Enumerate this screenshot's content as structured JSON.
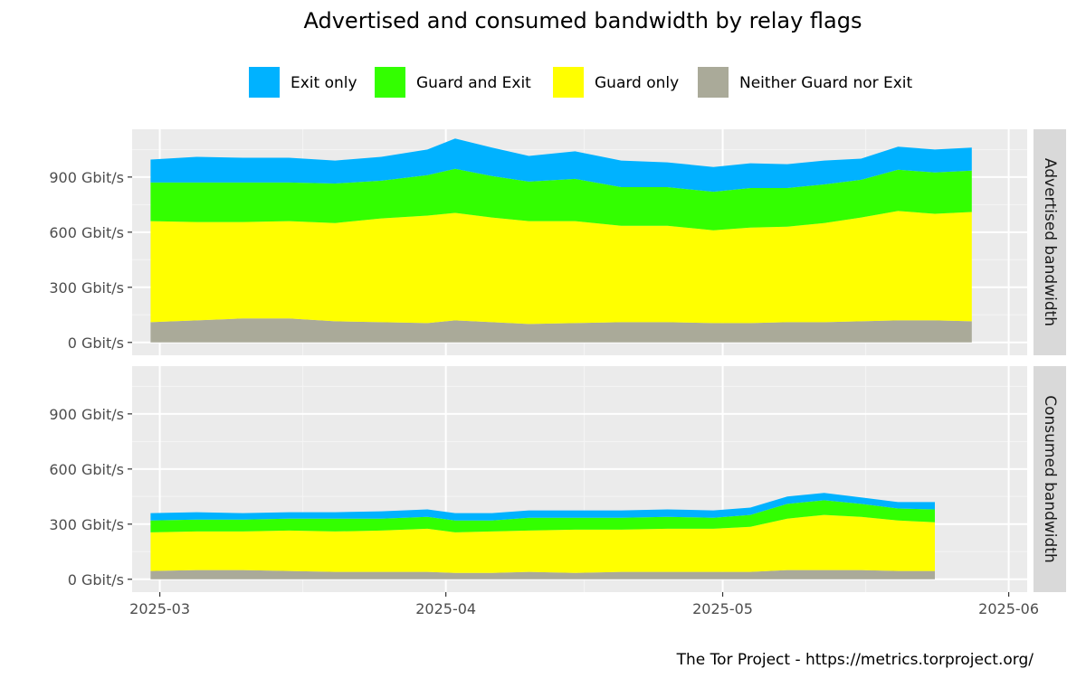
{
  "chart_data": {
    "type": "area",
    "stacked": true,
    "title": "Advertised and consumed bandwidth by relay flags",
    "caption": "The Tor Project - https://metrics.torproject.org/",
    "legend": {
      "placement": "top",
      "items": [
        {
          "name": "Exit only",
          "color": "#00b2ff"
        },
        {
          "name": "Guard and Exit",
          "color": "#33ff00"
        },
        {
          "name": "Guard only",
          "color": "#ffff00"
        },
        {
          "name": "Neither Guard nor Exit",
          "color": "#aaaa99"
        }
      ]
    },
    "x_range": [
      "2025-02-26",
      "2025-06-03"
    ],
    "x_ticks": [
      {
        "date": "2025-03-01",
        "label": "2025-03"
      },
      {
        "date": "2025-04-01",
        "label": "2025-04"
      },
      {
        "date": "2025-05-01",
        "label": "2025-05"
      },
      {
        "date": "2025-06-01",
        "label": "2025-06"
      }
    ],
    "y_range": [
      -70,
      1160
    ],
    "y_ticks": [
      {
        "value": 0,
        "label": "0 Gbit/s"
      },
      {
        "value": 300,
        "label": "300 Gbit/s"
      },
      {
        "value": 600,
        "label": "600 Gbit/s"
      },
      {
        "value": 900,
        "label": "900 Gbit/s"
      }
    ],
    "grid": true,
    "panels": [
      {
        "label": "Advertised bandwidth",
        "x": [
          "2025-02-28",
          "2025-03-05",
          "2025-03-10",
          "2025-03-15",
          "2025-03-20",
          "2025-03-25",
          "2025-03-30",
          "2025-04-02",
          "2025-04-06",
          "2025-04-10",
          "2025-04-15",
          "2025-04-20",
          "2025-04-25",
          "2025-04-30",
          "2025-05-04",
          "2025-05-08",
          "2025-05-12",
          "2025-05-16",
          "2025-05-20",
          "2025-05-24",
          "2025-05-28"
        ],
        "series": [
          {
            "name": "Neither Guard nor Exit",
            "values": [
              110,
              120,
              130,
              130,
              115,
              110,
              105,
              120,
              110,
              100,
              105,
              110,
              110,
              105,
              105,
              110,
              110,
              115,
              120,
              120,
              115
            ]
          },
          {
            "name": "Guard only",
            "values": [
              550,
              535,
              525,
              530,
              535,
              565,
              585,
              585,
              570,
              560,
              555,
              525,
              525,
              505,
              520,
              520,
              540,
              565,
              595,
              580,
              595
            ]
          },
          {
            "name": "Guard and Exit",
            "values": [
              210,
              215,
              215,
              210,
              215,
              205,
              220,
              240,
              225,
              215,
              230,
              210,
              210,
              210,
              215,
              210,
              210,
              205,
              225,
              225,
              225
            ]
          },
          {
            "name": "Exit only",
            "values": [
              125,
              140,
              135,
              135,
              125,
              130,
              140,
              165,
              155,
              140,
              150,
              145,
              135,
              135,
              135,
              130,
              130,
              115,
              125,
              125,
              125
            ]
          }
        ]
      },
      {
        "label": "Consumed bandwidth",
        "x": [
          "2025-02-28",
          "2025-03-05",
          "2025-03-10",
          "2025-03-15",
          "2025-03-20",
          "2025-03-25",
          "2025-03-30",
          "2025-04-02",
          "2025-04-06",
          "2025-04-10",
          "2025-04-15",
          "2025-04-20",
          "2025-04-25",
          "2025-04-30",
          "2025-05-04",
          "2025-05-08",
          "2025-05-12",
          "2025-05-16",
          "2025-05-20",
          "2025-05-24"
        ],
        "series": [
          {
            "name": "Neither Guard nor Exit",
            "values": [
              45,
              50,
              50,
              45,
              40,
              40,
              40,
              35,
              35,
              40,
              35,
              40,
              40,
              40,
              40,
              50,
              50,
              50,
              45,
              45
            ]
          },
          {
            "name": "Guard only",
            "values": [
              210,
              210,
              210,
              220,
              220,
              225,
              235,
              220,
              225,
              225,
              235,
              230,
              235,
              235,
              245,
              280,
              300,
              290,
              275,
              265
            ]
          },
          {
            "name": "Guard and Exit",
            "values": [
              65,
              65,
              65,
              65,
              70,
              65,
              65,
              65,
              60,
              70,
              65,
              65,
              65,
              60,
              65,
              80,
              80,
              70,
              65,
              70
            ]
          },
          {
            "name": "Exit only",
            "values": [
              40,
              40,
              35,
              35,
              35,
              40,
              40,
              40,
              40,
              40,
              40,
              40,
              40,
              40,
              40,
              40,
              40,
              35,
              35,
              40
            ]
          }
        ]
      }
    ]
  }
}
